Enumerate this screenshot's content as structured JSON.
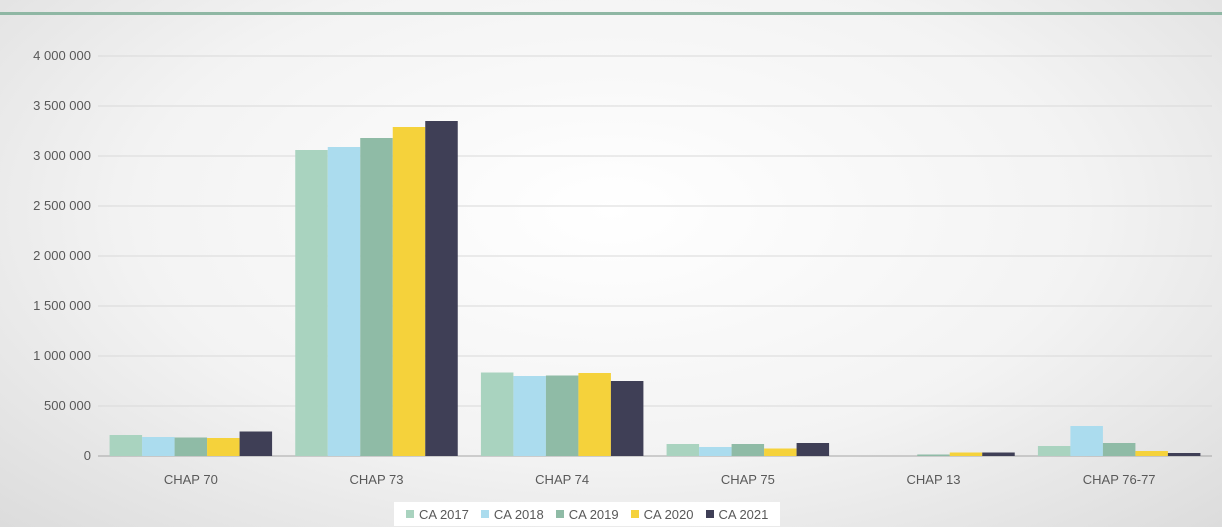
{
  "chart_data": {
    "type": "bar",
    "categories": [
      "CHAP 70",
      "CHAP 73",
      "CHAP 74",
      "CHAP 75",
      "CHAP 13",
      "CHAP 76-77"
    ],
    "series": [
      {
        "name": "CA 2017",
        "color": "#a9d3bf",
        "values": [
          210000,
          3060000,
          835000,
          120000,
          0,
          100000
        ]
      },
      {
        "name": "CA 2018",
        "color": "#abdcee",
        "values": [
          190000,
          3090000,
          800000,
          90000,
          0,
          300000
        ]
      },
      {
        "name": "CA 2019",
        "color": "#8fbba6",
        "values": [
          185000,
          3180000,
          805000,
          120000,
          15000,
          130000
        ]
      },
      {
        "name": "CA 2020",
        "color": "#f5d23b",
        "values": [
          180000,
          3290000,
          830000,
          75000,
          35000,
          50000
        ]
      },
      {
        "name": "CA 2021",
        "color": "#3f3f56",
        "values": [
          245000,
          3350000,
          750000,
          130000,
          35000,
          30000
        ]
      }
    ],
    "y_ticks": [
      "0",
      "500 000",
      "1 000 000",
      "1 500 000",
      "2 000 000",
      "2 500 000",
      "3 000 000",
      "3 500 000",
      "4 000 000"
    ],
    "ylim": [
      0,
      4000000
    ],
    "grid": true,
    "legend_position": "bottom"
  }
}
